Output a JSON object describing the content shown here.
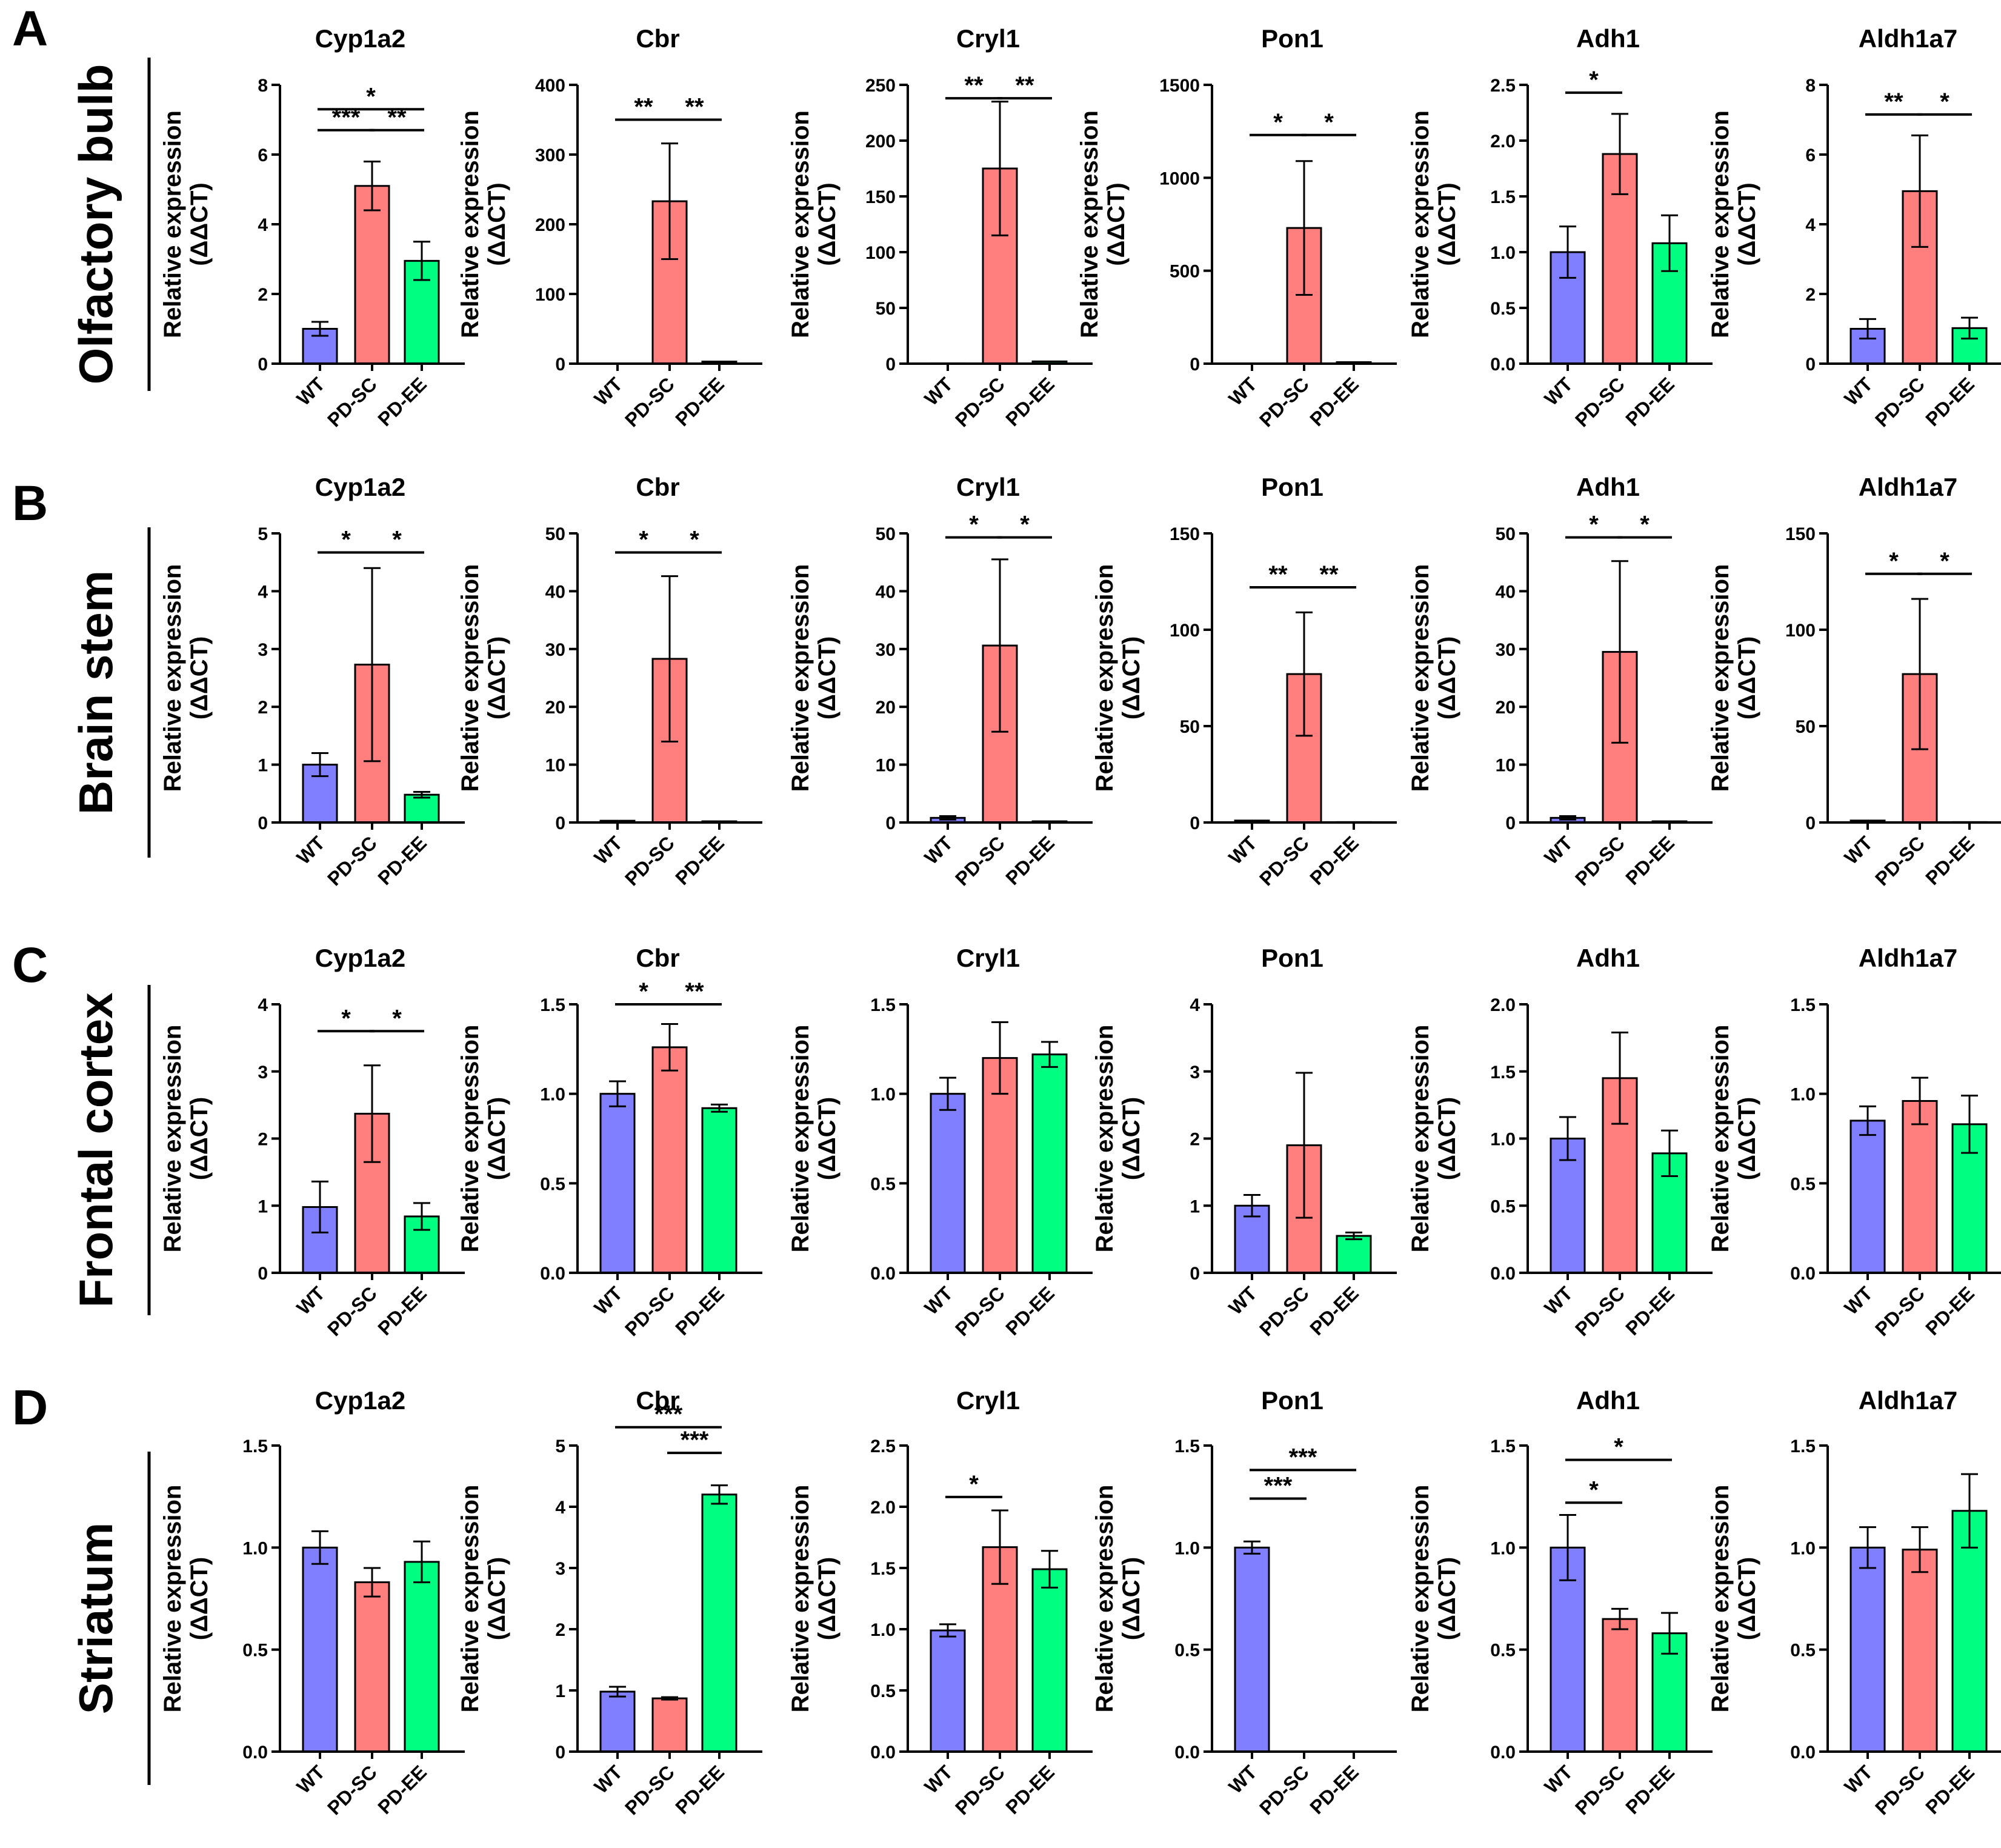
{
  "figure": {
    "ylabel_line1": "Relative expression",
    "ylabel_line2": "(ΔΔCT)",
    "groups": [
      "WT",
      "PD-SC",
      "PD-EE"
    ],
    "colors": {
      "WT": "#7f7fff",
      "PD-SC": "#ff7f7f",
      "PD-EE": "#00ff80"
    },
    "rows": [
      {
        "letter": "A",
        "region": "Olfactory bulb"
      },
      {
        "letter": "B",
        "region": "Brain stem"
      },
      {
        "letter": "C",
        "region": "Frontal cortex"
      },
      {
        "letter": "D",
        "region": "Striatum"
      }
    ]
  },
  "chart_data": [
    {
      "type": "bar",
      "row": 0,
      "col": 0,
      "title": "Cyp1a2",
      "categories": [
        "WT",
        "PD-SC",
        "PD-EE"
      ],
      "values": [
        1.0,
        5.1,
        2.95
      ],
      "errors": [
        0.2,
        0.7,
        0.55
      ],
      "ylim": [
        0,
        8
      ],
      "yticks": [
        "0",
        "2",
        "4",
        "6",
        "8"
      ],
      "xlabel": "",
      "ylabel": "Relative expression (ΔΔCT)",
      "sig": [
        {
          "a": 0,
          "b": 1,
          "label": "***",
          "y": 6.7
        },
        {
          "a": 1,
          "b": 2,
          "label": "**",
          "y": 6.7
        },
        {
          "a": 0,
          "b": 2,
          "label": "*",
          "y": 7.3
        }
      ]
    },
    {
      "type": "bar",
      "row": 0,
      "col": 1,
      "title": "Cbr",
      "categories": [
        "WT",
        "PD-SC",
        "PD-EE"
      ],
      "values": [
        0.3,
        233,
        3
      ],
      "errors": [
        0,
        83,
        0
      ],
      "ylim": [
        0,
        400
      ],
      "yticks": [
        "0",
        "100",
        "200",
        "300",
        "400"
      ],
      "xlabel": "",
      "ylabel": "Relative expression (ΔΔCT)",
      "sig": [
        {
          "a": 0,
          "b": 1,
          "label": "**",
          "y": 350
        },
        {
          "a": 1,
          "b": 2,
          "label": "**",
          "y": 350
        }
      ]
    },
    {
      "type": "bar",
      "row": 0,
      "col": 2,
      "title": "Cryl1",
      "categories": [
        "WT",
        "PD-SC",
        "PD-EE"
      ],
      "values": [
        0.3,
        175,
        2
      ],
      "errors": [
        0,
        60,
        0
      ],
      "ylim": [
        0,
        250
      ],
      "yticks": [
        "0",
        "50",
        "100",
        "150",
        "200",
        "250"
      ],
      "xlabel": "",
      "ylabel": "Relative expression (ΔΔCT)",
      "sig": [
        {
          "a": 0,
          "b": 1,
          "label": "**",
          "y": 238
        },
        {
          "a": 1,
          "b": 2,
          "label": "**",
          "y": 238
        }
      ]
    },
    {
      "type": "bar",
      "row": 0,
      "col": 3,
      "title": "Pon1",
      "categories": [
        "WT",
        "PD-SC",
        "PD-EE"
      ],
      "values": [
        1,
        730,
        8
      ],
      "errors": [
        0,
        360,
        0
      ],
      "ylim": [
        0,
        1500
      ],
      "yticks": [
        "0",
        "500",
        "1000",
        "1500"
      ],
      "xlabel": "",
      "ylabel": "Relative expression (ΔΔCT)",
      "sig": [
        {
          "a": 0,
          "b": 1,
          "label": "*",
          "y": 1230
        },
        {
          "a": 1,
          "b": 2,
          "label": "*",
          "y": 1230
        }
      ]
    },
    {
      "type": "bar",
      "row": 0,
      "col": 4,
      "title": "Adh1",
      "categories": [
        "WT",
        "PD-SC",
        "PD-EE"
      ],
      "values": [
        1.0,
        1.88,
        1.08
      ],
      "errors": [
        0.23,
        0.36,
        0.25
      ],
      "ylim": [
        0,
        2.5
      ],
      "yticks": [
        "0.0",
        "0.5",
        "1.0",
        "1.5",
        "2.0",
        "2.5"
      ],
      "xlabel": "",
      "ylabel": "Relative expression (ΔΔCT)",
      "sig": [
        {
          "a": 0,
          "b": 1,
          "label": "*",
          "y": 2.43
        }
      ]
    },
    {
      "type": "bar",
      "row": 0,
      "col": 5,
      "title": "Aldh1a7",
      "categories": [
        "WT",
        "PD-SC",
        "PD-EE"
      ],
      "values": [
        1.0,
        4.95,
        1.02
      ],
      "errors": [
        0.28,
        1.6,
        0.3
      ],
      "ylim": [
        0,
        8
      ],
      "yticks": [
        "0",
        "2",
        "4",
        "6",
        "8"
      ],
      "xlabel": "",
      "ylabel": "Relative expression (ΔΔCT)",
      "sig": [
        {
          "a": 0,
          "b": 1,
          "label": "**",
          "y": 7.15
        },
        {
          "a": 1,
          "b": 2,
          "label": "*",
          "y": 7.15
        }
      ]
    },
    {
      "type": "bar",
      "row": 1,
      "col": 0,
      "title": "Cyp1a2",
      "categories": [
        "WT",
        "PD-SC",
        "PD-EE"
      ],
      "values": [
        1.0,
        2.73,
        0.48
      ],
      "errors": [
        0.2,
        1.67,
        0.05
      ],
      "ylim": [
        0,
        5
      ],
      "yticks": [
        "0",
        "1",
        "2",
        "3",
        "4",
        "5"
      ],
      "xlabel": "",
      "ylabel": "Relative expression (ΔΔCT)",
      "sig": [
        {
          "a": 0,
          "b": 1,
          "label": "*",
          "y": 4.67
        },
        {
          "a": 1,
          "b": 2,
          "label": "*",
          "y": 4.67
        }
      ]
    },
    {
      "type": "bar",
      "row": 1,
      "col": 1,
      "title": "Cbr",
      "categories": [
        "WT",
        "PD-SC",
        "PD-EE"
      ],
      "values": [
        0.3,
        28.3,
        0.2
      ],
      "errors": [
        0,
        14.3,
        0
      ],
      "ylim": [
        0,
        50
      ],
      "yticks": [
        "0",
        "10",
        "20",
        "30",
        "40",
        "50"
      ],
      "xlabel": "",
      "ylabel": "Relative expression (ΔΔCT)",
      "sig": [
        {
          "a": 0,
          "b": 1,
          "label": "*",
          "y": 46.7
        },
        {
          "a": 1,
          "b": 2,
          "label": "*",
          "y": 46.7
        }
      ]
    },
    {
      "type": "bar",
      "row": 1,
      "col": 2,
      "title": "Cryl1",
      "categories": [
        "WT",
        "PD-SC",
        "PD-EE"
      ],
      "values": [
        0.8,
        30.6,
        0.2
      ],
      "errors": [
        0.3,
        14.9,
        0
      ],
      "ylim": [
        0,
        50
      ],
      "yticks": [
        "0",
        "10",
        "20",
        "30",
        "40",
        "50"
      ],
      "xlabel": "",
      "ylabel": "Relative expression (ΔΔCT)",
      "sig": [
        {
          "a": 0,
          "b": 1,
          "label": "*",
          "y": 49.3
        },
        {
          "a": 1,
          "b": 2,
          "label": "*",
          "y": 49.3
        }
      ]
    },
    {
      "type": "bar",
      "row": 1,
      "col": 3,
      "title": "Pon1",
      "categories": [
        "WT",
        "PD-SC",
        "PD-EE"
      ],
      "values": [
        1,
        77,
        0.2
      ],
      "errors": [
        0,
        32,
        0
      ],
      "ylim": [
        0,
        150
      ],
      "yticks": [
        "0",
        "50",
        "100",
        "150"
      ],
      "xlabel": "",
      "ylabel": "Relative expression (ΔΔCT)",
      "sig": [
        {
          "a": 0,
          "b": 1,
          "label": "**",
          "y": 122
        },
        {
          "a": 1,
          "b": 2,
          "label": "**",
          "y": 122
        }
      ]
    },
    {
      "type": "bar",
      "row": 1,
      "col": 4,
      "title": "Adh1",
      "categories": [
        "WT",
        "PD-SC",
        "PD-EE"
      ],
      "values": [
        0.8,
        29.5,
        0.2
      ],
      "errors": [
        0.3,
        15.7,
        0
      ],
      "ylim": [
        0,
        50
      ],
      "yticks": [
        "0",
        "10",
        "20",
        "30",
        "40",
        "50"
      ],
      "xlabel": "",
      "ylabel": "Relative expression (ΔΔCT)",
      "sig": [
        {
          "a": 0,
          "b": 1,
          "label": "*",
          "y": 49.3
        },
        {
          "a": 1,
          "b": 2,
          "label": "*",
          "y": 49.3
        }
      ]
    },
    {
      "type": "bar",
      "row": 1,
      "col": 5,
      "title": "Aldh1a7",
      "categories": [
        "WT",
        "PD-SC",
        "PD-EE"
      ],
      "values": [
        1,
        77,
        0.2
      ],
      "errors": [
        0,
        39,
        0
      ],
      "ylim": [
        0,
        150
      ],
      "yticks": [
        "0",
        "50",
        "100",
        "150"
      ],
      "xlabel": "",
      "ylabel": "Relative expression (ΔΔCT)",
      "sig": [
        {
          "a": 0,
          "b": 1,
          "label": "*",
          "y": 129
        },
        {
          "a": 1,
          "b": 2,
          "label": "*",
          "y": 129
        }
      ]
    },
    {
      "type": "bar",
      "row": 2,
      "col": 0,
      "title": "Cyp1a2",
      "categories": [
        "WT",
        "PD-SC",
        "PD-EE"
      ],
      "values": [
        0.98,
        2.37,
        0.84
      ],
      "errors": [
        0.38,
        0.72,
        0.2
      ],
      "ylim": [
        0,
        4
      ],
      "yticks": [
        "0",
        "1",
        "2",
        "3",
        "4"
      ],
      "xlabel": "",
      "ylabel": "Relative expression (ΔΔCT)",
      "sig": [
        {
          "a": 0,
          "b": 1,
          "label": "*",
          "y": 3.6
        },
        {
          "a": 1,
          "b": 2,
          "label": "*",
          "y": 3.6
        }
      ]
    },
    {
      "type": "bar",
      "row": 2,
      "col": 1,
      "title": "Cbr",
      "categories": [
        "WT",
        "PD-SC",
        "PD-EE"
      ],
      "values": [
        1.0,
        1.26,
        0.92
      ],
      "errors": [
        0.07,
        0.13,
        0.02
      ],
      "ylim": [
        0,
        1.5
      ],
      "yticks": [
        "0.0",
        "0.5",
        "1.0",
        "1.5"
      ],
      "xlabel": "",
      "ylabel": "Relative expression (ΔΔCT)",
      "sig": [
        {
          "a": 0,
          "b": 1,
          "label": "*",
          "y": 1.5
        },
        {
          "a": 1,
          "b": 2,
          "label": "**",
          "y": 1.5
        }
      ]
    },
    {
      "type": "bar",
      "row": 2,
      "col": 2,
      "title": "Cryl1",
      "categories": [
        "WT",
        "PD-SC",
        "PD-EE"
      ],
      "values": [
        1.0,
        1.2,
        1.22
      ],
      "errors": [
        0.09,
        0.2,
        0.07
      ],
      "ylim": [
        0,
        1.5
      ],
      "yticks": [
        "0.0",
        "0.5",
        "1.0",
        "1.5"
      ],
      "xlabel": "",
      "ylabel": "Relative expression (ΔΔCT)",
      "sig": []
    },
    {
      "type": "bar",
      "row": 2,
      "col": 3,
      "title": "Pon1",
      "categories": [
        "WT",
        "PD-SC",
        "PD-EE"
      ],
      "values": [
        1.0,
        1.9,
        0.55
      ],
      "errors": [
        0.16,
        1.08,
        0.05
      ],
      "ylim": [
        0,
        4
      ],
      "yticks": [
        "0",
        "1",
        "2",
        "3",
        "4"
      ],
      "xlabel": "",
      "ylabel": "Relative expression (ΔΔCT)",
      "sig": []
    },
    {
      "type": "bar",
      "row": 2,
      "col": 4,
      "title": "Adh1",
      "categories": [
        "WT",
        "PD-SC",
        "PD-EE"
      ],
      "values": [
        1.0,
        1.45,
        0.89
      ],
      "errors": [
        0.16,
        0.34,
        0.17
      ],
      "ylim": [
        0,
        2
      ],
      "yticks": [
        "0.0",
        "0.5",
        "1.0",
        "1.5",
        "2.0"
      ],
      "xlabel": "",
      "ylabel": "Relative expression (ΔΔCT)",
      "sig": []
    },
    {
      "type": "bar",
      "row": 2,
      "col": 5,
      "title": "Aldh1a7",
      "categories": [
        "WT",
        "PD-SC",
        "PD-EE"
      ],
      "values": [
        0.85,
        0.96,
        0.83
      ],
      "errors": [
        0.08,
        0.13,
        0.16
      ],
      "ylim": [
        0,
        1.5
      ],
      "yticks": [
        "0.0",
        "0.5",
        "1.0",
        "1.5"
      ],
      "xlabel": "",
      "ylabel": "Relative expression (ΔΔCT)",
      "sig": []
    },
    {
      "type": "bar",
      "row": 3,
      "col": 0,
      "title": "Cyp1a2",
      "categories": [
        "WT",
        "PD-SC",
        "PD-EE"
      ],
      "values": [
        1.0,
        0.83,
        0.93
      ],
      "errors": [
        0.08,
        0.07,
        0.1
      ],
      "ylim": [
        0,
        1.5
      ],
      "yticks": [
        "0.0",
        "0.5",
        "1.0",
        "1.5"
      ],
      "xlabel": "",
      "ylabel": "Relative expression (ΔΔCT)",
      "sig": []
    },
    {
      "type": "bar",
      "row": 3,
      "col": 1,
      "title": "Cbr",
      "categories": [
        "WT",
        "PD-SC",
        "PD-EE"
      ],
      "values": [
        0.98,
        0.87,
        4.2
      ],
      "errors": [
        0.08,
        0.02,
        0.15
      ],
      "ylim": [
        0,
        5
      ],
      "yticks": [
        "0",
        "1",
        "2",
        "3",
        "4",
        "5"
      ],
      "xlabel": "",
      "ylabel": "Relative expression (ΔΔCT)",
      "sig": [
        {
          "a": 1,
          "b": 2,
          "label": "***",
          "y": 4.88
        },
        {
          "a": 0,
          "b": 2,
          "label": "***",
          "y": 5.3
        }
      ]
    },
    {
      "type": "bar",
      "row": 3,
      "col": 2,
      "title": "Cryl1",
      "categories": [
        "WT",
        "PD-SC",
        "PD-EE"
      ],
      "values": [
        0.99,
        1.67,
        1.49
      ],
      "errors": [
        0.05,
        0.3,
        0.15
      ],
      "ylim": [
        0,
        2.5
      ],
      "yticks": [
        "0.0",
        "0.5",
        "1.0",
        "1.5",
        "2.0",
        "2.5"
      ],
      "xlabel": "",
      "ylabel": "Relative expression (ΔΔCT)",
      "sig": [
        {
          "a": 0,
          "b": 1,
          "label": "*",
          "y": 2.08
        }
      ]
    },
    {
      "type": "bar",
      "row": 3,
      "col": 3,
      "title": "Pon1",
      "categories": [
        "WT",
        "PD-SC",
        "PD-EE"
      ],
      "values": [
        1.0,
        0,
        0
      ],
      "errors": [
        0.03,
        0,
        0
      ],
      "ylim": [
        0,
        1.5
      ],
      "yticks": [
        "0.0",
        "0.5",
        "1.0",
        "1.5"
      ],
      "xlabel": "",
      "ylabel": "Relative expression (ΔΔCT)",
      "sig": [
        {
          "a": 0,
          "b": 1,
          "label": "***",
          "y": 1.24
        },
        {
          "a": 0,
          "b": 2,
          "label": "***",
          "y": 1.38
        }
      ]
    },
    {
      "type": "bar",
      "row": 3,
      "col": 4,
      "title": "Adh1",
      "categories": [
        "WT",
        "PD-SC",
        "PD-EE"
      ],
      "values": [
        1.0,
        0.65,
        0.58
      ],
      "errors": [
        0.16,
        0.05,
        0.1
      ],
      "ylim": [
        0,
        1.5
      ],
      "yticks": [
        "0.0",
        "0.5",
        "1.0",
        "1.5"
      ],
      "xlabel": "",
      "ylabel": "Relative expression (ΔΔCT)",
      "sig": [
        {
          "a": 0,
          "b": 1,
          "label": "*",
          "y": 1.22
        },
        {
          "a": 0,
          "b": 2,
          "label": "*",
          "y": 1.43
        }
      ]
    },
    {
      "type": "bar",
      "row": 3,
      "col": 5,
      "title": "Aldh1a7",
      "categories": [
        "WT",
        "PD-SC",
        "PD-EE"
      ],
      "values": [
        1.0,
        0.99,
        1.18
      ],
      "errors": [
        0.1,
        0.11,
        0.18
      ],
      "ylim": [
        0,
        1.5
      ],
      "yticks": [
        "0.0",
        "0.5",
        "1.0",
        "1.5"
      ],
      "xlabel": "",
      "ylabel": "Relative expression (ΔΔCT)",
      "sig": []
    }
  ]
}
